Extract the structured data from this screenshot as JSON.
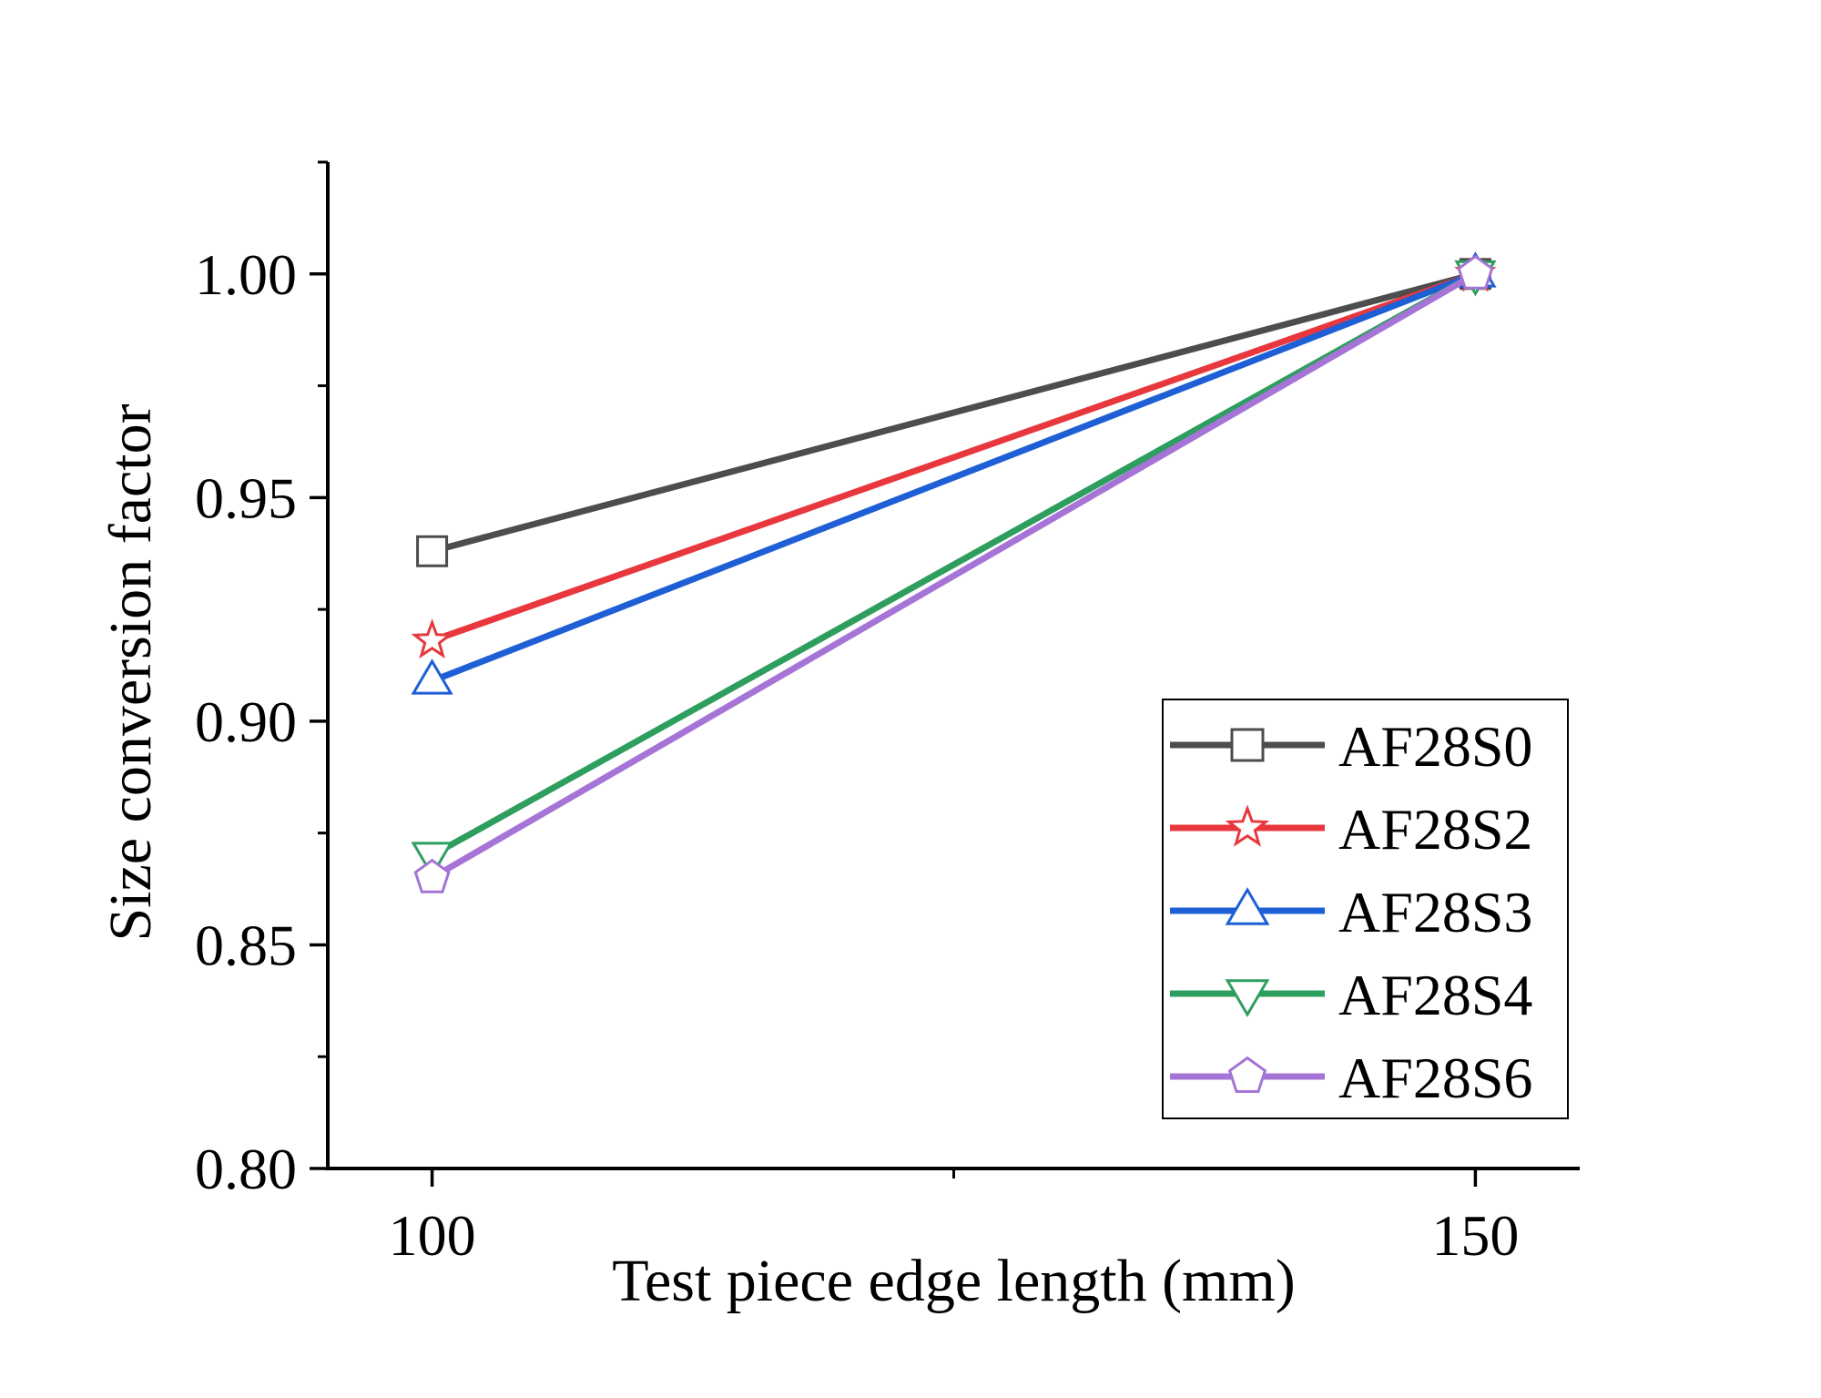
{
  "chart_data": {
    "type": "line",
    "title": "",
    "xlabel": "Test piece edge length (mm)",
    "ylabel": "Size conversion factor",
    "x": [
      100,
      150
    ],
    "xlim": [
      95,
      155
    ],
    "ylim": [
      0.8,
      1.025
    ],
    "x_ticks": [
      100,
      150
    ],
    "x_tick_labels": [
      "100",
      "150"
    ],
    "x_minor_ticks": [
      125
    ],
    "y_ticks": [
      0.8,
      0.85,
      0.9,
      0.95,
      1.0
    ],
    "y_tick_labels": [
      "0.80",
      "0.85",
      "0.90",
      "0.95",
      "1.00"
    ],
    "y_minor_ticks": [
      0.825,
      0.875,
      0.925,
      0.975
    ],
    "grid": false,
    "legend_position": "bottom-right",
    "series": [
      {
        "name": "AF28S0",
        "values": [
          0.938,
          1.0
        ],
        "color": "#4d4d4d",
        "marker": "square"
      },
      {
        "name": "AF28S2",
        "values": [
          0.918,
          1.0
        ],
        "color": "#e8383d",
        "marker": "star"
      },
      {
        "name": "AF28S3",
        "values": [
          0.909,
          1.0
        ],
        "color": "#1f5fd6",
        "marker": "triangle-up"
      },
      {
        "name": "AF28S4",
        "values": [
          0.87,
          1.0
        ],
        "color": "#2e9e5e",
        "marker": "triangle-down"
      },
      {
        "name": "AF28S6",
        "values": [
          0.865,
          1.0
        ],
        "color": "#a574d6",
        "marker": "pentagon"
      }
    ]
  }
}
